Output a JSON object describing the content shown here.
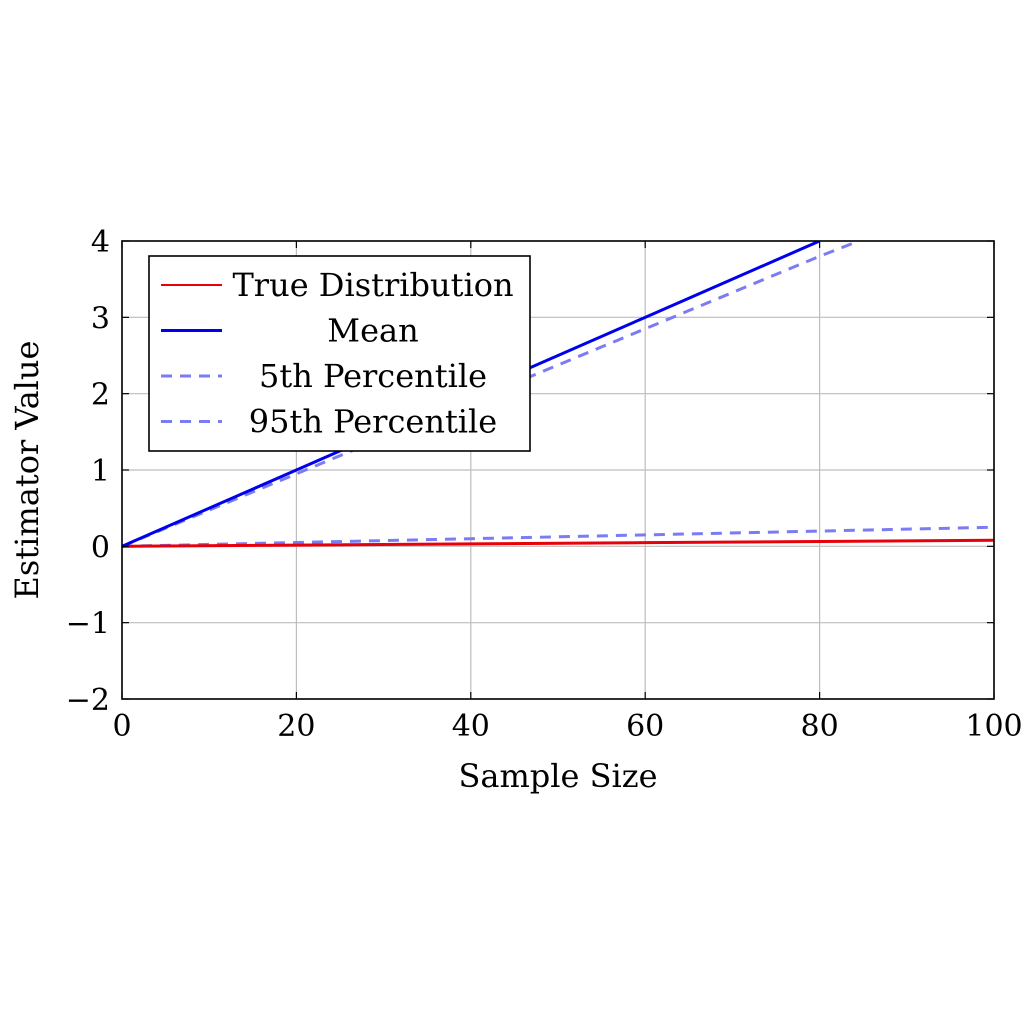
{
  "chart_data": {
    "type": "line",
    "title": "",
    "xlabel": "Sample Size",
    "ylabel": "Estimator Value",
    "xlim": [
      0,
      100
    ],
    "ylim": [
      -2,
      4
    ],
    "xticks": [
      "0",
      "20",
      "40",
      "60",
      "80",
      "100"
    ],
    "yticks": [
      "−2",
      "−1",
      "0",
      "1",
      "2",
      "3",
      "4"
    ],
    "grid": true,
    "legend_position": "top-left",
    "series": [
      {
        "name": "True Distribution",
        "color": "#e8000b",
        "style": "solid",
        "x": [
          0,
          20,
          40,
          60,
          80,
          100
        ],
        "y": [
          0,
          0.016,
          0.032,
          0.048,
          0.064,
          0.08
        ]
      },
      {
        "name": "Mean",
        "color": "#0000ee",
        "style": "solid",
        "x": [
          0,
          20,
          40,
          60,
          80
        ],
        "y": [
          0,
          1.0,
          2.0,
          3.0,
          4.0
        ]
      },
      {
        "name": "5th Percentile",
        "color": "#7b7bf3",
        "style": "dashed",
        "x": [
          0,
          20,
          40,
          60,
          80,
          84.5
        ],
        "y": [
          0,
          0.95,
          1.9,
          2.85,
          3.8,
          4.0
        ]
      },
      {
        "name": "95th Percentile",
        "color": "#7b7bf3",
        "style": "dashed",
        "x": [
          0,
          20,
          40,
          60,
          80,
          100
        ],
        "y": [
          0,
          0.05,
          0.1,
          0.15,
          0.2,
          0.25
        ]
      }
    ]
  }
}
